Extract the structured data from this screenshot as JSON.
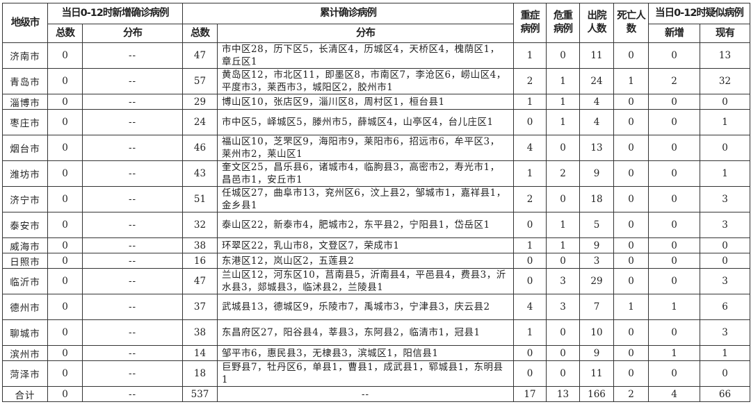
{
  "header": {
    "city": "地级市",
    "new_group": "当日0-12时新增确诊病例",
    "cum_group": "累计确诊病例",
    "severe": "重症病例",
    "critical": "危重病例",
    "discharged": "出院人数",
    "deaths": "死亡人数",
    "suspect_group": "当日0-12时疑似病例",
    "total": "总数",
    "dist": "分布",
    "suspect_new": "新增",
    "suspect_now": "现有"
  },
  "rows": [
    {
      "city": "济南市",
      "new_total": "0",
      "new_dist": "--",
      "cum_total": "47",
      "cum_dist": "市中区28，历下区5，长清区4，历城区4，天桥区4，槐荫区1，章丘区1",
      "severe": "1",
      "critical": "0",
      "discharged": "11",
      "deaths": "0",
      "suspect_new": "0",
      "suspect_now": "13"
    },
    {
      "city": "青岛市",
      "new_total": "0",
      "new_dist": "--",
      "cum_total": "57",
      "cum_dist": "黄岛区12，市北区11，即墨区8，市南区7，李沧区6，崂山区4，平度市3，莱西市3，城阳区2，胶州市1",
      "severe": "2",
      "critical": "1",
      "discharged": "24",
      "deaths": "1",
      "suspect_new": "2",
      "suspect_now": "32"
    },
    {
      "city": "淄博市",
      "new_total": "0",
      "new_dist": "--",
      "cum_total": "29",
      "cum_dist": "博山区10，张店区9，淄川区8，周村区1，桓台县1",
      "severe": "1",
      "critical": "1",
      "discharged": "4",
      "deaths": "0",
      "suspect_new": "0",
      "suspect_now": "0"
    },
    {
      "city": "枣庄市",
      "new_total": "0",
      "new_dist": "--",
      "cum_total": "24",
      "cum_dist": "市中区5，峄城区5，滕州市5，薛城区4，山亭区4，台儿庄区1",
      "severe": "0",
      "critical": "1",
      "discharged": "4",
      "deaths": "0",
      "suspect_new": "0",
      "suspect_now": "1"
    },
    {
      "city": "烟台市",
      "new_total": "0",
      "new_dist": "--",
      "cum_total": "46",
      "cum_dist": "福山区10，芝罘区9，海阳市9，莱阳市6，招远市6，牟平区3，莱州市2，莱山区1",
      "severe": "4",
      "critical": "0",
      "discharged": "13",
      "deaths": "0",
      "suspect_new": "0",
      "suspect_now": "0"
    },
    {
      "city": "潍坊市",
      "new_total": "0",
      "new_dist": "--",
      "cum_total": "43",
      "cum_dist": "奎文区25，昌乐县6，诸城市4，临朐县3，高密市2，寿光市1，昌邑市1，安丘市1",
      "severe": "1",
      "critical": "2",
      "discharged": "9",
      "deaths": "0",
      "suspect_new": "0",
      "suspect_now": "1"
    },
    {
      "city": "济宁市",
      "new_total": "0",
      "new_dist": "--",
      "cum_total": "51",
      "cum_dist": "任城区27，曲阜市13，兖州区6，汶上县2，邹城市1，嘉祥县1，金乡县1",
      "severe": "2",
      "critical": "0",
      "discharged": "18",
      "deaths": "0",
      "suspect_new": "0",
      "suspect_now": "3"
    },
    {
      "city": "泰安市",
      "new_total": "0",
      "new_dist": "--",
      "cum_total": "32",
      "cum_dist": "泰山区22，新泰市4，肥城市2，东平县2，宁阳县1，岱岳区1",
      "severe": "0",
      "critical": "1",
      "discharged": "5",
      "deaths": "0",
      "suspect_new": "0",
      "suspect_now": "3"
    },
    {
      "city": "威海市",
      "new_total": "0",
      "new_dist": "--",
      "cum_total": "38",
      "cum_dist": "环翠区22，乳山市8，文登区7，荣成市1",
      "severe": "1",
      "critical": "1",
      "discharged": "9",
      "deaths": "0",
      "suspect_new": "0",
      "suspect_now": "0"
    },
    {
      "city": "日照市",
      "new_total": "0",
      "new_dist": "--",
      "cum_total": "16",
      "cum_dist": "东港区12，岚山区2，五莲县2",
      "severe": "0",
      "critical": "0",
      "discharged": "3",
      "deaths": "0",
      "suspect_new": "0",
      "suspect_now": "0"
    },
    {
      "city": "临沂市",
      "new_total": "0",
      "new_dist": "--",
      "cum_total": "47",
      "cum_dist": "兰山区12，河东区10，莒南县5，沂南县4，平邑县4，费县3，沂水县3，郯城县3，临沭县2，兰陵县1",
      "severe": "0",
      "critical": "3",
      "discharged": "29",
      "deaths": "0",
      "suspect_new": "0",
      "suspect_now": "3"
    },
    {
      "city": "德州市",
      "new_total": "0",
      "new_dist": "--",
      "cum_total": "37",
      "cum_dist": "武城县13，德城区9，乐陵市7，禹城市3，宁津县3，庆云县2",
      "severe": "4",
      "critical": "3",
      "discharged": "7",
      "deaths": "1",
      "suspect_new": "1",
      "suspect_now": "6"
    },
    {
      "city": "聊城市",
      "new_total": "0",
      "new_dist": "--",
      "cum_total": "38",
      "cum_dist": "东昌府区27，阳谷县4，莘县3，东阿县2，临清市1，冠县1",
      "severe": "1",
      "critical": "0",
      "discharged": "10",
      "deaths": "0",
      "suspect_new": "0",
      "suspect_now": "3"
    },
    {
      "city": "滨州市",
      "new_total": "0",
      "new_dist": "--",
      "cum_total": "14",
      "cum_dist": "邹平市6，惠民县3，无棣县3，滨城区1，阳信县1",
      "severe": "0",
      "critical": "0",
      "discharged": "9",
      "deaths": "0",
      "suspect_new": "1",
      "suspect_now": "1"
    },
    {
      "city": "菏泽市",
      "new_total": "0",
      "new_dist": "--",
      "cum_total": "18",
      "cum_dist": "巨野县7，牡丹区6，单县1，曹县1，成武县1，郓城县1，东明县1",
      "severe": "0",
      "critical": "0",
      "discharged": "11",
      "deaths": "0",
      "suspect_new": "0",
      "suspect_now": "0"
    }
  ],
  "total": {
    "city": "合计",
    "new_total": "0",
    "new_dist": "--",
    "cum_total": "537",
    "cum_dist": "--",
    "severe": "17",
    "critical": "13",
    "discharged": "166",
    "deaths": "2",
    "suspect_new": "4",
    "suspect_now": "66"
  }
}
